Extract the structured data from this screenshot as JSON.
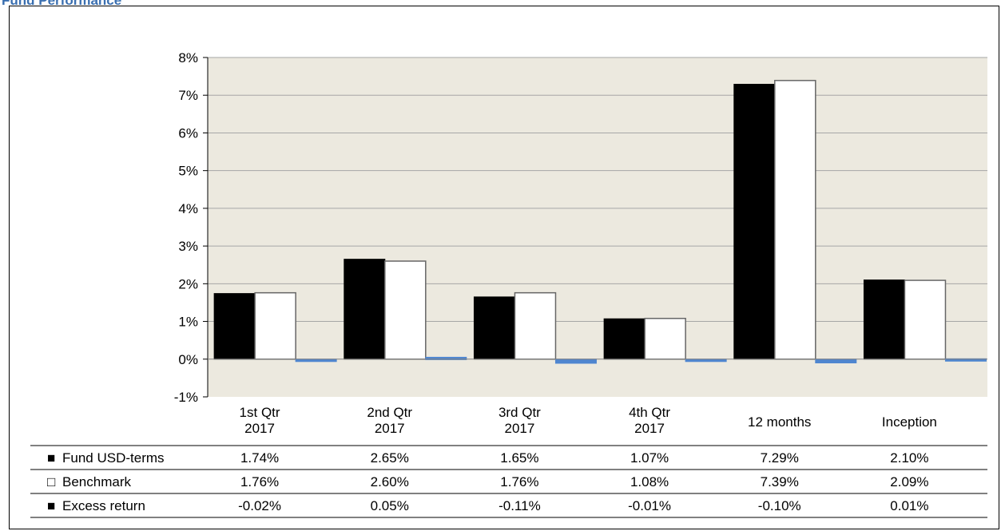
{
  "title": "Fund Performance",
  "chart_data": {
    "type": "bar",
    "categories": [
      [
        "1st Qtr",
        "2017"
      ],
      [
        "2nd Qtr",
        "2017"
      ],
      [
        "3rd Qtr",
        "2017"
      ],
      [
        "4th Qtr",
        "2017"
      ],
      [
        "12 months"
      ],
      [
        "Inception"
      ]
    ],
    "series": [
      {
        "name": "Fund USD-terms",
        "values": [
          1.74,
          2.65,
          1.65,
          1.07,
          7.29,
          2.1
        ],
        "labels": [
          "1.74%",
          "2.65%",
          "1.65%",
          "1.07%",
          "7.29%",
          "2.10%"
        ],
        "color": "#000000",
        "stroke": "#000000",
        "legend_symbol": "■"
      },
      {
        "name": "Benchmark",
        "values": [
          1.76,
          2.6,
          1.76,
          1.08,
          7.39,
          2.09
        ],
        "labels": [
          "1.76%",
          "2.60%",
          "1.76%",
          "1.08%",
          "7.39%",
          "2.09%"
        ],
        "color": "#ffffff",
        "stroke": "#666666",
        "legend_symbol": "□"
      },
      {
        "name": "Excess return",
        "values": [
          -0.02,
          0.05,
          -0.11,
          -0.01,
          -0.1,
          0.01
        ],
        "labels": [
          "-0.02%",
          "0.05%",
          "-0.11%",
          "-0.01%",
          "-0.10%",
          "0.01%"
        ],
        "color": "#4f86d0",
        "stroke": "#4f86d0",
        "legend_symbol": "■"
      }
    ],
    "ylim": [
      -1,
      8
    ],
    "y_ticks": [
      -1,
      0,
      1,
      2,
      3,
      4,
      5,
      6,
      7,
      8
    ],
    "y_tick_labels": [
      "-1%",
      "0%",
      "1%",
      "2%",
      "3%",
      "4%",
      "5%",
      "6%",
      "7%",
      "8%"
    ],
    "plot_background": "#ece9df",
    "gridlines": true,
    "legend": "data-table-below"
  }
}
